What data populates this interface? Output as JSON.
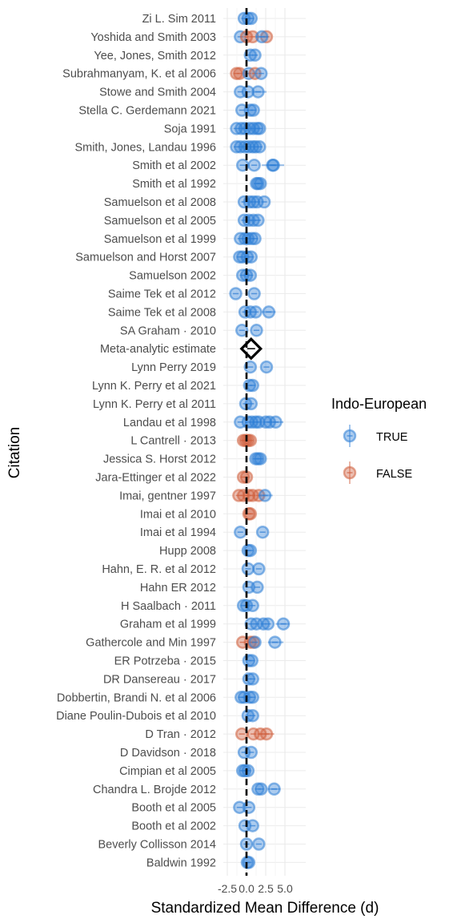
{
  "chart_data": {
    "type": "scatter",
    "subtype": "forest-plot",
    "xlabel": "Standardized Mean Difference (d)",
    "ylabel": "Citation",
    "x_ticks": [
      "-2.5",
      "0.0",
      "2.5",
      "5.0"
    ],
    "x_tick_values": [
      -2.5,
      0.0,
      2.5,
      5.0
    ],
    "xlim": [
      -3.0,
      6.0
    ],
    "grid": true,
    "reference_line_x": 0.0,
    "legend": {
      "title": "Indo-European",
      "placement": "right",
      "entries": [
        {
          "label": "TRUE",
          "color": "#2f7fd6"
        },
        {
          "label": "FALSE",
          "color": "#d0603e"
        }
      ]
    },
    "colors": {
      "TRUE": "#2f7fd6",
      "FALSE": "#d0603e"
    },
    "meta_estimate": {
      "label": "Meta-analytic estimate",
      "value": 0.6,
      "ci": [
        0.2,
        1.0
      ]
    },
    "citations": [
      {
        "name": "Zi L. Sim 2011",
        "points": [
          {
            "x": -0.3,
            "g": "T"
          },
          {
            "x": 0.2,
            "g": "T"
          },
          {
            "x": 0.6,
            "g": "T"
          }
        ]
      },
      {
        "name": "Yoshida and Smith 2003",
        "points": [
          {
            "x": -0.8,
            "g": "T"
          },
          {
            "x": 0.0,
            "g": "F"
          },
          {
            "x": 0.8,
            "g": "F"
          },
          {
            "x": 2.6,
            "g": "F"
          },
          {
            "x": 2.0,
            "g": "T",
            "ci": [
              1.2,
              2.8
            ]
          }
        ]
      },
      {
        "name": "Yee, Jones, Smith 2012",
        "points": [
          {
            "x": 0.5,
            "g": "T"
          },
          {
            "x": 1.1,
            "g": "T"
          }
        ]
      },
      {
        "name": "Subrahmanyam, K. et al 2006",
        "points": [
          {
            "x": -1.3,
            "g": "F"
          },
          {
            "x": -0.9,
            "g": "F"
          },
          {
            "x": 0.3,
            "g": "T"
          },
          {
            "x": 1.1,
            "g": "F"
          },
          {
            "x": 1.9,
            "g": "T"
          }
        ]
      },
      {
        "name": "Stowe and Smith 2004",
        "points": [
          {
            "x": -0.8,
            "g": "T"
          },
          {
            "x": 0.2,
            "g": "T"
          },
          {
            "x": 1.5,
            "g": "T",
            "ci": [
              0.8,
              2.6
            ]
          }
        ]
      },
      {
        "name": "Stella C. Gerdemann 2021",
        "points": [
          {
            "x": -0.6,
            "g": "T"
          },
          {
            "x": 0.5,
            "g": "T"
          },
          {
            "x": 0.9,
            "g": "T"
          }
        ]
      },
      {
        "name": "Soja 1991",
        "points": [
          {
            "x": -1.3,
            "g": "T"
          },
          {
            "x": -0.7,
            "g": "T"
          },
          {
            "x": -0.2,
            "g": "T"
          },
          {
            "x": 0.4,
            "g": "T"
          },
          {
            "x": 0.9,
            "g": "T"
          },
          {
            "x": 1.4,
            "g": "T"
          },
          {
            "x": 1.7,
            "g": "T"
          }
        ]
      },
      {
        "name": "Smith, Jones, Landau 1996",
        "points": [
          {
            "x": -1.3,
            "g": "T"
          },
          {
            "x": -0.8,
            "g": "T"
          },
          {
            "x": -0.2,
            "g": "T"
          },
          {
            "x": 0.3,
            "g": "T"
          },
          {
            "x": 0.8,
            "g": "T"
          },
          {
            "x": 1.2,
            "g": "T"
          },
          {
            "x": 1.7,
            "g": "T"
          }
        ]
      },
      {
        "name": "Smith et al 2002",
        "points": [
          {
            "x": -0.5,
            "g": "T"
          },
          {
            "x": 1.0,
            "g": "T"
          },
          {
            "x": 3.5,
            "g": "T",
            "ci": [
              2.0,
              4.9
            ]
          },
          {
            "x": 3.4,
            "g": "T",
            "ci": [
              2.6,
              4.1
            ]
          }
        ]
      },
      {
        "name": "Smith et al 1992",
        "points": [
          {
            "x": 1.3,
            "g": "T"
          },
          {
            "x": 1.5,
            "g": "T"
          },
          {
            "x": 1.8,
            "g": "T"
          }
        ]
      },
      {
        "name": "Samuelson et al 2008",
        "points": [
          {
            "x": -0.3,
            "g": "T"
          },
          {
            "x": 0.4,
            "g": "T"
          },
          {
            "x": 0.9,
            "g": "T"
          },
          {
            "x": 1.4,
            "g": "T"
          },
          {
            "x": 2.3,
            "g": "T"
          }
        ]
      },
      {
        "name": "Samuelson et al 2005",
        "points": [
          {
            "x": -0.3,
            "g": "T"
          },
          {
            "x": 0.3,
            "g": "T"
          },
          {
            "x": 0.9,
            "g": "T"
          },
          {
            "x": 1.5,
            "g": "T"
          }
        ]
      },
      {
        "name": "Samuelson et al 1999",
        "points": [
          {
            "x": -0.8,
            "g": "T"
          },
          {
            "x": -0.2,
            "g": "T"
          },
          {
            "x": 0.2,
            "g": "T"
          },
          {
            "x": 0.7,
            "g": "T"
          },
          {
            "x": 1.1,
            "g": "T"
          }
        ]
      },
      {
        "name": "Samuelson and Horst 2007",
        "points": [
          {
            "x": -0.9,
            "g": "T"
          },
          {
            "x": -0.5,
            "g": "T"
          },
          {
            "x": 0.1,
            "g": "T"
          },
          {
            "x": 0.6,
            "g": "T"
          }
        ]
      },
      {
        "name": "Samuelson 2002",
        "points": [
          {
            "x": -0.5,
            "g": "T"
          },
          {
            "x": 0.0,
            "g": "T"
          },
          {
            "x": 0.5,
            "g": "T"
          }
        ]
      },
      {
        "name": "Saime Tek et al 2012",
        "points": [
          {
            "x": -1.4,
            "g": "T"
          },
          {
            "x": 1.0,
            "g": "T"
          }
        ]
      },
      {
        "name": "Saime Tek et al 2008",
        "points": [
          {
            "x": -0.2,
            "g": "T"
          },
          {
            "x": 0.5,
            "g": "T"
          },
          {
            "x": 1.2,
            "g": "T"
          },
          {
            "x": 2.9,
            "g": "T",
            "ci": [
              2.0,
              3.8
            ]
          }
        ]
      },
      {
        "name": "SA Graham · 2010",
        "points": [
          {
            "x": -0.6,
            "g": "T"
          },
          {
            "x": 1.3,
            "g": "T"
          }
        ]
      },
      {
        "name": "Lynn Perry 2019",
        "points": [
          {
            "x": 0.5,
            "g": "T"
          },
          {
            "x": 2.6,
            "g": "T"
          }
        ]
      },
      {
        "name": "Lynn K. Perry et al 2021",
        "points": [
          {
            "x": 0.4,
            "g": "T"
          },
          {
            "x": 0.8,
            "g": "T"
          }
        ]
      },
      {
        "name": "Lynn K. Perry et al 2011",
        "points": [
          {
            "x": -0.1,
            "g": "T"
          },
          {
            "x": 0.6,
            "g": "T"
          }
        ]
      },
      {
        "name": "Landau et al 1998",
        "points": [
          {
            "x": -0.8,
            "g": "T"
          },
          {
            "x": 0.2,
            "g": "T"
          },
          {
            "x": 0.7,
            "g": "T"
          },
          {
            "x": 1.2,
            "g": "T"
          },
          {
            "x": 1.6,
            "g": "T"
          },
          {
            "x": 2.5,
            "g": "T"
          },
          {
            "x": 3.0,
            "g": "T"
          },
          {
            "x": 3.8,
            "g": "T",
            "ci": [
              2.8,
              4.8
            ]
          }
        ]
      },
      {
        "name": "L Cantrell · 2013",
        "points": [
          {
            "x": -0.4,
            "g": "F"
          },
          {
            "x": -0.1,
            "g": "F"
          },
          {
            "x": 0.2,
            "g": "F"
          },
          {
            "x": 0.5,
            "g": "F"
          }
        ]
      },
      {
        "name": "Jessica S. Horst 2012",
        "points": [
          {
            "x": 1.2,
            "g": "T"
          },
          {
            "x": 1.5,
            "g": "T"
          },
          {
            "x": 1.8,
            "g": "T"
          }
        ]
      },
      {
        "name": "Jara-Ettinger et al 2022",
        "points": [
          {
            "x": -0.4,
            "g": "F"
          },
          {
            "x": 0.0,
            "g": "F"
          }
        ]
      },
      {
        "name": "Imai, gentner 1997",
        "points": [
          {
            "x": -1.0,
            "g": "F"
          },
          {
            "x": -0.4,
            "g": "F"
          },
          {
            "x": 0.3,
            "g": "F"
          },
          {
            "x": 0.8,
            "g": "F"
          },
          {
            "x": 1.6,
            "g": "F"
          },
          {
            "x": 2.4,
            "g": "T",
            "ci": [
              1.6,
              3.4
            ]
          }
        ]
      },
      {
        "name": "Imai et al 2010",
        "points": [
          {
            "x": 0.3,
            "g": "F"
          },
          {
            "x": 0.5,
            "g": "F"
          }
        ]
      },
      {
        "name": "Imai et al 1994",
        "points": [
          {
            "x": -0.8,
            "g": "T"
          },
          {
            "x": 2.1,
            "g": "T"
          }
        ]
      },
      {
        "name": "Hupp 2008",
        "points": [
          {
            "x": 0.2,
            "g": "T"
          },
          {
            "x": 0.5,
            "g": "T"
          }
        ]
      },
      {
        "name": "Hahn, E. R. et al 2012",
        "points": [
          {
            "x": 0.2,
            "g": "T"
          },
          {
            "x": 1.6,
            "g": "T"
          }
        ]
      },
      {
        "name": "Hahn ER 2012",
        "points": [
          {
            "x": 0.3,
            "g": "T"
          },
          {
            "x": 1.4,
            "g": "T"
          }
        ]
      },
      {
        "name": "H Saalbach · 2011",
        "points": [
          {
            "x": -0.4,
            "g": "T"
          },
          {
            "x": 0.0,
            "g": "T"
          },
          {
            "x": 0.8,
            "g": "T"
          }
        ]
      },
      {
        "name": "Graham et al 1999",
        "points": [
          {
            "x": 0.6,
            "g": "T"
          },
          {
            "x": 1.3,
            "g": "T"
          },
          {
            "x": 2.2,
            "g": "T"
          },
          {
            "x": 2.8,
            "g": "T"
          },
          {
            "x": 4.8,
            "g": "T",
            "ci": [
              3.8,
              5.6
            ]
          }
        ]
      },
      {
        "name": "Gathercole and Min 1997",
        "points": [
          {
            "x": -0.5,
            "g": "F"
          },
          {
            "x": 0.5,
            "g": "F"
          },
          {
            "x": 0.9,
            "g": "F"
          },
          {
            "x": 1.1,
            "g": "T"
          },
          {
            "x": 3.7,
            "g": "T",
            "ci": [
              2.8,
              4.8
            ]
          }
        ]
      },
      {
        "name": "ER Potrzeba · 2015",
        "points": [
          {
            "x": 0.3,
            "g": "T"
          },
          {
            "x": 0.7,
            "g": "T"
          }
        ]
      },
      {
        "name": "DR Dansereau · 2017",
        "points": [
          {
            "x": 0.3,
            "g": "T"
          },
          {
            "x": 0.8,
            "g": "T"
          }
        ]
      },
      {
        "name": "Dobbertin, Brandi N. et al 2006",
        "points": [
          {
            "x": -0.7,
            "g": "T"
          },
          {
            "x": -0.3,
            "g": "T"
          },
          {
            "x": 0.4,
            "g": "T"
          },
          {
            "x": 0.8,
            "g": "T"
          }
        ]
      },
      {
        "name": "Diane Poulin-Dubois et al 2010",
        "points": [
          {
            "x": 0.2,
            "g": "T"
          },
          {
            "x": 0.8,
            "g": "T"
          }
        ]
      },
      {
        "name": "D Tran · 2012",
        "points": [
          {
            "x": -0.6,
            "g": "F"
          },
          {
            "x": 0.9,
            "g": "F"
          },
          {
            "x": 1.8,
            "g": "F"
          },
          {
            "x": 2.6,
            "g": "F",
            "ci": [
              1.6,
              3.6
            ]
          }
        ]
      },
      {
        "name": "D Davidson · 2018",
        "points": [
          {
            "x": -0.3,
            "g": "T"
          },
          {
            "x": 0.6,
            "g": "T"
          }
        ]
      },
      {
        "name": "Cimpian et al 2005",
        "points": [
          {
            "x": -0.5,
            "g": "T"
          },
          {
            "x": -0.2,
            "g": "T"
          },
          {
            "x": 0.2,
            "g": "T"
          }
        ]
      },
      {
        "name": "Chandra L. Brojde 2012",
        "points": [
          {
            "x": 1.5,
            "g": "T"
          },
          {
            "x": 1.9,
            "g": "T"
          },
          {
            "x": 3.6,
            "g": "T",
            "ci": [
              2.8,
              4.4
            ]
          }
        ]
      },
      {
        "name": "Booth et al 2005",
        "points": [
          {
            "x": -0.9,
            "g": "T"
          },
          {
            "x": 0.3,
            "g": "T"
          }
        ]
      },
      {
        "name": "Booth et al 2002",
        "points": [
          {
            "x": -0.2,
            "g": "T"
          },
          {
            "x": 0.8,
            "g": "T"
          }
        ]
      },
      {
        "name": "Beverly Collisson 2014",
        "points": [
          {
            "x": 0.0,
            "g": "T"
          },
          {
            "x": 1.6,
            "g": "T"
          }
        ]
      },
      {
        "name": "Baldwin 1992",
        "points": [
          {
            "x": 0.1,
            "g": "T"
          },
          {
            "x": 0.3,
            "g": "T"
          }
        ]
      }
    ]
  }
}
